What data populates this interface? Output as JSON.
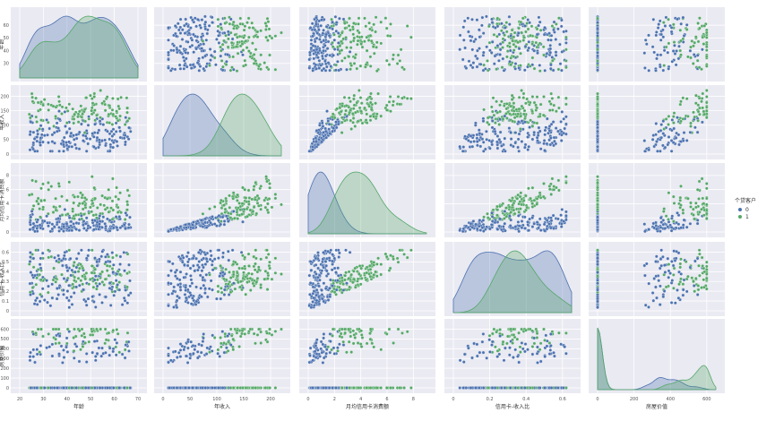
{
  "chart_data": {
    "type": "scatter",
    "layout": "pairplot",
    "variables": [
      "年龄",
      "年收入",
      "月均信用卡消费额",
      "信用卡-收入比",
      "房屋价值"
    ],
    "ranges": {
      "年龄": [
        20,
        70
      ],
      "年收入": [
        0,
        220
      ],
      "月均信用卡消费额": [
        0,
        9
      ],
      "信用卡-收入比": [
        0,
        0.65
      ],
      "房屋价值": [
        0,
        650
      ]
    },
    "x_ticks": {
      "年龄": [
        10,
        20,
        30,
        40,
        50,
        60,
        70,
        80
      ],
      "年收入": [
        -50,
        0,
        50,
        100,
        150,
        200,
        250
      ],
      "月均信用卡消费额": [
        -2,
        0,
        2,
        4,
        6,
        8,
        10
      ],
      "信用卡-收入比": [
        -0.2,
        0.0,
        0.2,
        0.4,
        0.6,
        0.8
      ],
      "房屋价值": [
        -200,
        0,
        200,
        400,
        600,
        800
      ]
    },
    "y_ticks": {
      "年龄": [
        30,
        40,
        50,
        60
      ],
      "年收入": [
        0,
        50,
        100,
        150,
        200
      ],
      "月均信用卡消费额": [
        0,
        2,
        4,
        6,
        8
      ],
      "信用卡-收入比": [
        0.0,
        0.1,
        0.2,
        0.3,
        0.4,
        0.5,
        0.6
      ],
      "房屋价值": [
        0,
        100,
        200,
        300,
        400,
        500,
        600
      ]
    },
    "legend": {
      "title": "个贷客户",
      "placement": "right",
      "entries": [
        {
          "label": "0",
          "color": "#4c72b0"
        },
        {
          "label": "1",
          "color": "#55a868"
        }
      ]
    },
    "grid": true
  }
}
